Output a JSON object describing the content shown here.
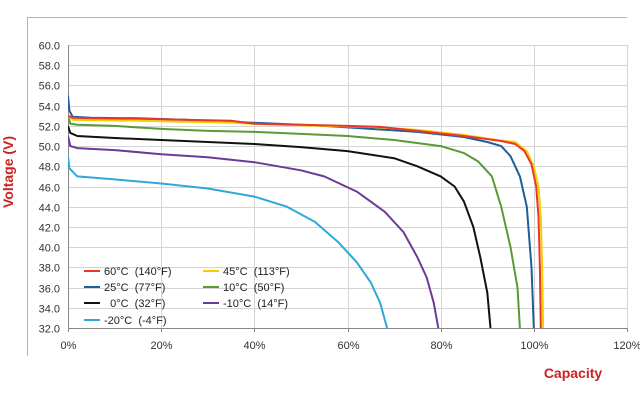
{
  "chart_data": {
    "type": "line",
    "title": "",
    "xlabel": "Capacity",
    "ylabel": "Voltage (V)",
    "axis_title_color": "#cc2222",
    "xlim": [
      0,
      120
    ],
    "ylim": [
      32,
      60
    ],
    "x_ticks": [
      "0%",
      "20%",
      "40%",
      "60%",
      "80%",
      "100%",
      "120%"
    ],
    "y_ticks": [
      "32.0",
      "34.0",
      "36.0",
      "38.0",
      "40.0",
      "42.0",
      "44.0",
      "46.0",
      "48.0",
      "50.0",
      "52.0",
      "54.0",
      "56.0",
      "58.0",
      "60.0"
    ],
    "grid": true,
    "legend_position": "bottom-left",
    "series": [
      {
        "name": "60°C  (140°F)",
        "color": "#e8382c",
        "points": [
          [
            0,
            53.0
          ],
          [
            1,
            52.8
          ],
          [
            5,
            52.75
          ],
          [
            15,
            52.7
          ],
          [
            25,
            52.6
          ],
          [
            35,
            52.5
          ],
          [
            40,
            52.2
          ],
          [
            50,
            52.1
          ],
          [
            60,
            52.0
          ],
          [
            67,
            51.9
          ],
          [
            75,
            51.5
          ],
          [
            85,
            51.0
          ],
          [
            93,
            50.5
          ],
          [
            96,
            50.2
          ],
          [
            98,
            49.5
          ],
          [
            99.5,
            48.2
          ],
          [
            100.5,
            46.0
          ],
          [
            101,
            43.0
          ],
          [
            101.3,
            38.0
          ],
          [
            101.5,
            32.0
          ]
        ]
      },
      {
        "name": "45°C  (113°F)",
        "color": "#f5d000",
        "points": [
          [
            0,
            53.0
          ],
          [
            1,
            52.6
          ],
          [
            5,
            52.55
          ],
          [
            15,
            52.5
          ],
          [
            25,
            52.4
          ],
          [
            35,
            52.3
          ],
          [
            45,
            52.1
          ],
          [
            55,
            52.0
          ],
          [
            65,
            51.9
          ],
          [
            75,
            51.6
          ],
          [
            85,
            51.1
          ],
          [
            92,
            50.6
          ],
          [
            96,
            50.4
          ],
          [
            98.5,
            49.5
          ],
          [
            100,
            48.0
          ],
          [
            101,
            46.0
          ],
          [
            101.5,
            43.0
          ],
          [
            101.8,
            38.0
          ],
          [
            102,
            32.0
          ]
        ]
      },
      {
        "name": "25°C  (77°F)",
        "color": "#1f5f96",
        "points": [
          [
            0,
            55.0
          ],
          [
            0.3,
            53.5
          ],
          [
            1,
            52.9
          ],
          [
            5,
            52.8
          ],
          [
            15,
            52.75
          ],
          [
            25,
            52.6
          ],
          [
            35,
            52.4
          ],
          [
            45,
            52.2
          ],
          [
            55,
            52.0
          ],
          [
            65,
            51.7
          ],
          [
            75,
            51.4
          ],
          [
            85,
            50.9
          ],
          [
            90,
            50.4
          ],
          [
            93,
            50.0
          ],
          [
            95,
            49.0
          ],
          [
            97,
            47.0
          ],
          [
            98.5,
            44.0
          ],
          [
            99.5,
            38.0
          ],
          [
            100,
            32.0
          ]
        ]
      },
      {
        "name": "10°C  (50°F)",
        "color": "#5a9a36",
        "points": [
          [
            0,
            53.0
          ],
          [
            0.5,
            52.2
          ],
          [
            2,
            52.1
          ],
          [
            10,
            52.0
          ],
          [
            20,
            51.7
          ],
          [
            30,
            51.5
          ],
          [
            40,
            51.4
          ],
          [
            50,
            51.2
          ],
          [
            60,
            51.0
          ],
          [
            70,
            50.6
          ],
          [
            80,
            50.0
          ],
          [
            85,
            49.3
          ],
          [
            88,
            48.5
          ],
          [
            91,
            47.0
          ],
          [
            93,
            44.0
          ],
          [
            95,
            40.0
          ],
          [
            96.5,
            36.0
          ],
          [
            97,
            32.0
          ]
        ]
      },
      {
        "name": "  0°C  (32°F)",
        "color": "#111111",
        "points": [
          [
            0,
            52.0
          ],
          [
            0.5,
            51.3
          ],
          [
            2,
            51.0
          ],
          [
            10,
            50.8
          ],
          [
            20,
            50.6
          ],
          [
            30,
            50.4
          ],
          [
            40,
            50.2
          ],
          [
            50,
            49.9
          ],
          [
            60,
            49.5
          ],
          [
            70,
            48.8
          ],
          [
            75,
            48.0
          ],
          [
            80,
            47.0
          ],
          [
            83,
            46.0
          ],
          [
            85,
            44.5
          ],
          [
            87,
            42.0
          ],
          [
            88.5,
            39.0
          ],
          [
            90,
            35.5
          ],
          [
            90.7,
            32.0
          ]
        ]
      },
      {
        "name": "-10°C  (14°F)",
        "color": "#6c3a96",
        "points": [
          [
            0,
            51.0
          ],
          [
            0.5,
            50.0
          ],
          [
            2,
            49.8
          ],
          [
            10,
            49.6
          ],
          [
            20,
            49.2
          ],
          [
            30,
            48.9
          ],
          [
            40,
            48.4
          ],
          [
            50,
            47.6
          ],
          [
            55,
            47.0
          ],
          [
            62,
            45.5
          ],
          [
            68,
            43.5
          ],
          [
            72,
            41.5
          ],
          [
            75,
            39.0
          ],
          [
            77,
            37.0
          ],
          [
            78.5,
            34.5
          ],
          [
            79.5,
            32.0
          ]
        ]
      },
      {
        "name": "-20°C  (-4°F)",
        "color": "#2ea8d6",
        "points": [
          [
            0,
            49.0
          ],
          [
            0.3,
            47.8
          ],
          [
            2,
            47.0
          ],
          [
            10,
            46.7
          ],
          [
            20,
            46.3
          ],
          [
            30,
            45.8
          ],
          [
            40,
            45.0
          ],
          [
            47,
            44.0
          ],
          [
            53,
            42.5
          ],
          [
            58,
            40.5
          ],
          [
            62,
            38.5
          ],
          [
            65,
            36.5
          ],
          [
            67,
            34.5
          ],
          [
            68.5,
            32.0
          ]
        ]
      }
    ],
    "legend_order": [
      0,
      1,
      2,
      3,
      4,
      5,
      6
    ]
  }
}
